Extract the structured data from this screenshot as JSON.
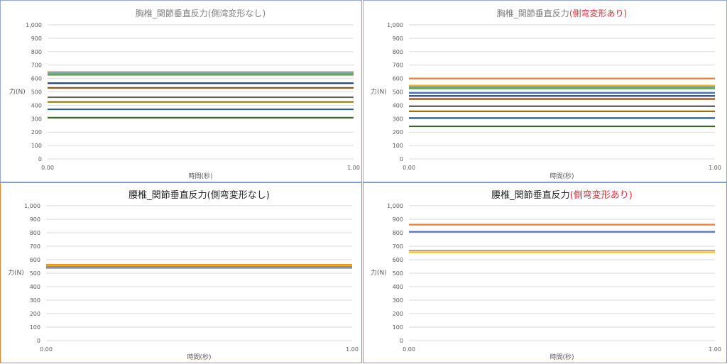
{
  "chart_data": [
    {
      "type": "line",
      "title": "胸椎_関節垂直反力(側湾変形なし)",
      "title_main": "胸椎_関節垂直反力",
      "title_paren": "(側湾変形なし)",
      "title_paren_color": "#7f7f7f",
      "title_color": "#7f7f7f",
      "border_color": "#8ea9db",
      "xlabel": "時間(秒)",
      "ylabel": "力(N)",
      "x": [
        0.0,
        1.0
      ],
      "x_tick_labels": [
        "0.00",
        "1.00"
      ],
      "ylim": [
        0,
        1000
      ],
      "y_ticks": [
        0,
        100,
        200,
        300,
        400,
        500,
        600,
        700,
        800,
        900,
        1000
      ],
      "y_tick_labels": [
        "0",
        "100",
        "200",
        "300",
        "400",
        "500",
        "600",
        "700",
        "800",
        "900",
        "1,000"
      ],
      "grid": true,
      "series": [
        {
          "color": "#a5a5a5",
          "values": [
            648,
            648
          ]
        },
        {
          "color": "#5b9bd5",
          "values": [
            640,
            640
          ]
        },
        {
          "color": "#ffc000",
          "values": [
            636,
            636
          ]
        },
        {
          "color": "#4472c4",
          "values": [
            632,
            632
          ]
        },
        {
          "color": "#70ad47",
          "values": [
            627,
            627
          ]
        },
        {
          "color": "#264478",
          "values": [
            565,
            565
          ]
        },
        {
          "color": "#9e480e",
          "values": [
            530,
            530
          ]
        },
        {
          "color": "#636363",
          "values": [
            460,
            460
          ]
        },
        {
          "color": "#997300",
          "values": [
            425,
            425
          ]
        },
        {
          "color": "#255e91",
          "values": [
            370,
            370
          ]
        },
        {
          "color": "#43682b",
          "values": [
            308,
            308
          ]
        }
      ]
    },
    {
      "type": "line",
      "title": "胸椎_関節垂直反力(側弯変形あり)",
      "title_main": "胸椎_関節垂直反力",
      "title_paren": "(側弯変形あり)",
      "title_paren_color": "#e0303a",
      "title_color": "#7f7f7f",
      "border_color": "#8ea9db",
      "xlabel": "時間(秒)",
      "ylabel": "力(N)",
      "x": [
        0.0,
        1.0
      ],
      "x_tick_labels": [
        "0.00",
        "1.00"
      ],
      "ylim": [
        0,
        1000
      ],
      "y_ticks": [
        0,
        100,
        200,
        300,
        400,
        500,
        600,
        700,
        800,
        900,
        1000
      ],
      "y_tick_labels": [
        "0",
        "100",
        "200",
        "300",
        "400",
        "500",
        "600",
        "700",
        "800",
        "900",
        "1,000"
      ],
      "grid": true,
      "series": [
        {
          "color": "#ed7d31",
          "values": [
            600,
            600
          ]
        },
        {
          "color": "#ffc000",
          "values": [
            548,
            548
          ]
        },
        {
          "color": "#a5a5a5",
          "values": [
            540,
            540
          ]
        },
        {
          "color": "#5b9bd5",
          "values": [
            532,
            532
          ]
        },
        {
          "color": "#70ad47",
          "values": [
            525,
            525
          ]
        },
        {
          "color": "#4472c4",
          "values": [
            492,
            492
          ]
        },
        {
          "color": "#264478",
          "values": [
            470,
            470
          ]
        },
        {
          "color": "#9e480e",
          "values": [
            447,
            447
          ]
        },
        {
          "color": "#636363",
          "values": [
            392,
            392
          ]
        },
        {
          "color": "#997300",
          "values": [
            355,
            355
          ]
        },
        {
          "color": "#255e91",
          "values": [
            305,
            305
          ]
        },
        {
          "color": "#43682b",
          "values": [
            243,
            243
          ]
        }
      ]
    },
    {
      "type": "line",
      "title": "腰椎_関節垂直反力(側弯変形なし)",
      "title_main": "腰椎_関節垂直反力",
      "title_paren": "(側弯変形なし)",
      "title_paren_color": "#262626",
      "title_color": "#262626",
      "border_color": "#ed7d31",
      "xlabel": "時間(秒)",
      "ylabel": "力(N)",
      "x": [
        0.0,
        1.0
      ],
      "x_tick_labels": [
        "0.00",
        "1.00"
      ],
      "ylim": [
        0,
        1000
      ],
      "y_ticks": [
        0,
        100,
        200,
        300,
        400,
        500,
        600,
        700,
        800,
        900,
        1000
      ],
      "y_tick_labels": [
        "0",
        "100",
        "200",
        "300",
        "400",
        "500",
        "600",
        "700",
        "800",
        "900",
        "1,000"
      ],
      "grid": true,
      "series": [
        {
          "color": "#ed7d31",
          "values": [
            562,
            562
          ]
        },
        {
          "color": "#ffc000",
          "values": [
            553,
            553
          ]
        },
        {
          "color": "#4472c4",
          "values": [
            545,
            545
          ]
        },
        {
          "color": "#a5a5a5",
          "values": [
            538,
            538
          ]
        }
      ]
    },
    {
      "type": "line",
      "title": "腰椎_関節垂直反力(側弯変形あり)",
      "title_main": "腰椎_関節垂直反力",
      "title_paren": "(側弯変形あり)",
      "title_paren_color": "#e0303a",
      "title_color": "#262626",
      "border_color": "#ed7d31",
      "xlabel": "時間(秒)",
      "ylabel": "力(N)",
      "x": [
        0.0,
        1.0
      ],
      "x_tick_labels": [
        "0.00",
        "1.00"
      ],
      "ylim": [
        0,
        1000
      ],
      "y_ticks": [
        0,
        100,
        200,
        300,
        400,
        500,
        600,
        700,
        800,
        900,
        1000
      ],
      "y_tick_labels": [
        "0",
        "100",
        "200",
        "300",
        "400",
        "500",
        "600",
        "700",
        "800",
        "900",
        "1,000"
      ],
      "grid": true,
      "series": [
        {
          "color": "#ed7d31",
          "values": [
            860,
            860
          ]
        },
        {
          "color": "#4472c4",
          "values": [
            807,
            807
          ]
        },
        {
          "color": "#a5a5a5",
          "values": [
            668,
            668
          ]
        },
        {
          "color": "#ffc000",
          "values": [
            655,
            655
          ]
        }
      ]
    }
  ]
}
